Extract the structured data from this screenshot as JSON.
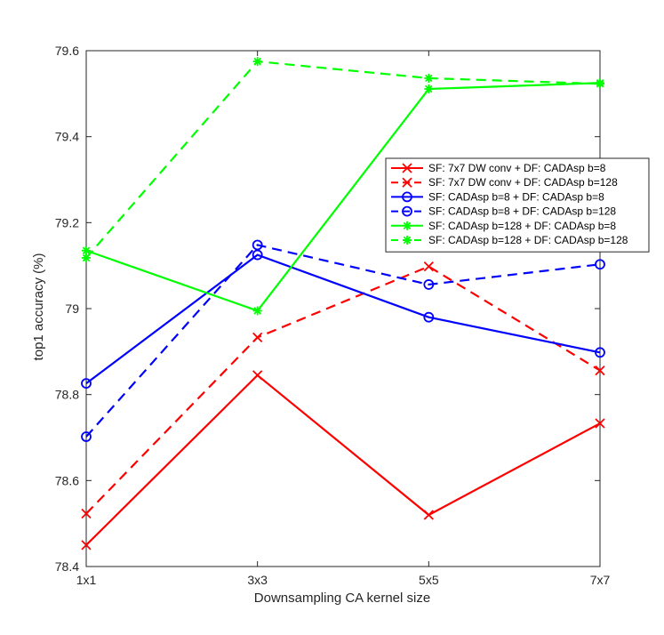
{
  "chart_data": {
    "type": "line",
    "title": "",
    "xlabel": "Downsampling CA kernel size",
    "ylabel": "top1 accuracy (%)",
    "categories": [
      "1x1",
      "3x3",
      "5x5",
      "7x7"
    ],
    "ylim": [
      78.4,
      79.6
    ],
    "yticks": [
      "78.4",
      "78.6",
      "78.8",
      "79",
      "79.2",
      "79.4",
      "79.6"
    ],
    "ytick_values": [
      78.4,
      78.6,
      78.8,
      79.0,
      79.2,
      79.4,
      79.6
    ],
    "grid": false,
    "legend_position": "right",
    "series": [
      {
        "name": "SF: 7x7 DW conv + DF: CADAsp b=8",
        "color": "#ff0000",
        "dash": "solid",
        "marker": "x",
        "values": [
          78.45,
          78.845,
          78.52,
          78.733
        ]
      },
      {
        "name": "SF: 7x7 DW conv + DF: CADAsp b=128",
        "color": "#ff0000",
        "dash": "dashed",
        "marker": "x",
        "values": [
          78.523,
          78.933,
          79.098,
          78.856
        ]
      },
      {
        "name": "SF: CADAsp b=8 + DF: CADAsp b=8",
        "color": "#0000ff",
        "dash": "solid",
        "marker": "o",
        "values": [
          78.826,
          79.125,
          78.98,
          78.898
        ]
      },
      {
        "name": "SF: CADAsp b=8 + DF: CADAsp b=128",
        "color": "#0000ff",
        "dash": "dashed",
        "marker": "o",
        "values": [
          78.702,
          79.148,
          79.056,
          79.103
        ]
      },
      {
        "name": "SF: CADAsp b=128 + DF: CADAsp b=8",
        "color": "#00ff00",
        "dash": "solid",
        "marker": "*",
        "values": [
          79.135,
          78.995,
          79.511,
          79.525
        ]
      },
      {
        "name": "SF: CADAsp b=128 + DF: CADAsp b=128",
        "color": "#00ff00",
        "dash": "dashed",
        "marker": "*",
        "values": [
          79.118,
          79.575,
          79.536,
          79.523
        ]
      }
    ]
  }
}
